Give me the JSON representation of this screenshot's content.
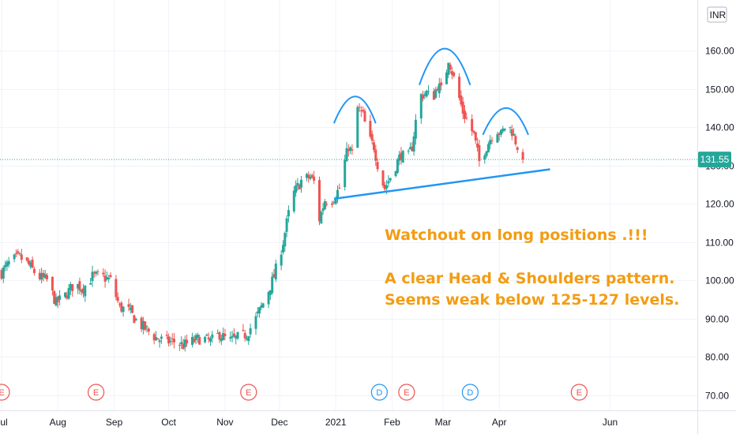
{
  "chart_data": {
    "type": "candlestick",
    "currency": "INR",
    "last_price": "131.55",
    "y_ticks": [
      "70.00",
      "80.00",
      "90.00",
      "100.00",
      "110.00",
      "120.00",
      "130.00",
      "140.00",
      "150.00",
      "160.00"
    ],
    "y_tick_values": [
      70,
      80,
      90,
      100,
      110,
      120,
      130,
      140,
      150,
      160
    ],
    "ylim": [
      68.5,
      169.5
    ],
    "x_labels": [
      {
        "label": "Jul",
        "day": 0
      },
      {
        "label": "Aug",
        "day": 31
      },
      {
        "label": "Sep",
        "day": 62
      },
      {
        "label": "Oct",
        "day": 92
      },
      {
        "label": "Nov",
        "day": 123
      },
      {
        "label": "Dec",
        "day": 153
      },
      {
        "label": "2021",
        "day": 184
      },
      {
        "label": "Feb",
        "day": 215
      },
      {
        "label": "Mar",
        "day": 243
      },
      {
        "label": "Apr",
        "day": 274
      },
      {
        "label": "Jun",
        "day": 335
      }
    ],
    "close_trend": [
      [
        0,
        102
      ],
      [
        5,
        105
      ],
      [
        10,
        106
      ],
      [
        15,
        104
      ],
      [
        20,
        101
      ],
      [
        25,
        100
      ],
      [
        30,
        94
      ],
      [
        35,
        96
      ],
      [
        40,
        99
      ],
      [
        45,
        98
      ],
      [
        50,
        101
      ],
      [
        55,
        101
      ],
      [
        60,
        100
      ],
      [
        65,
        93
      ],
      [
        70,
        92
      ],
      [
        75,
        89
      ],
      [
        80,
        87
      ],
      [
        85,
        85
      ],
      [
        90,
        84
      ],
      [
        95,
        84
      ],
      [
        100,
        83
      ],
      [
        105,
        84
      ],
      [
        110,
        85
      ],
      [
        115,
        84
      ],
      [
        120,
        86
      ],
      [
        125,
        84
      ],
      [
        130,
        85
      ],
      [
        135,
        86
      ],
      [
        140,
        90
      ],
      [
        145,
        95
      ],
      [
        150,
        101
      ],
      [
        155,
        110
      ],
      [
        157,
        115
      ],
      [
        160,
        122
      ],
      [
        165,
        126
      ],
      [
        170,
        127
      ],
      [
        173,
        125
      ],
      [
        175,
        116
      ],
      [
        178,
        121
      ],
      [
        182,
        121
      ],
      [
        186,
        124
      ],
      [
        188,
        129
      ],
      [
        191,
        135
      ],
      [
        193,
        133
      ],
      [
        196,
        145
      ],
      [
        199,
        143
      ],
      [
        202,
        137
      ],
      [
        205,
        135
      ],
      [
        208,
        128
      ],
      [
        211,
        124
      ],
      [
        214,
        127
      ],
      [
        217,
        130
      ],
      [
        220,
        133
      ],
      [
        223,
        131
      ],
      [
        226,
        135
      ],
      [
        230,
        148
      ],
      [
        234,
        149
      ],
      [
        237,
        147
      ],
      [
        240,
        151
      ],
      [
        243,
        149
      ],
      [
        246,
        158
      ],
      [
        250,
        151
      ],
      [
        254,
        144
      ],
      [
        257,
        141
      ],
      [
        260,
        138
      ],
      [
        263,
        131
      ],
      [
        266,
        134
      ],
      [
        269,
        137
      ],
      [
        272,
        140
      ],
      [
        275,
        138
      ],
      [
        278,
        141
      ],
      [
        281,
        139
      ],
      [
        284,
        135
      ],
      [
        287,
        131.55
      ]
    ],
    "events": [
      {
        "label": "E",
        "day": 0
      },
      {
        "label": "E",
        "day": 52
      },
      {
        "label": "E",
        "day": 136
      },
      {
        "label": "D",
        "day": 208
      },
      {
        "label": "E",
        "day": 223
      },
      {
        "label": "D",
        "day": 258
      },
      {
        "label": "E",
        "day": 318
      }
    ],
    "colors": {
      "up": "#26a69a",
      "down": "#ef5350",
      "drawing": "#2196f3",
      "annotation": "#f39c12",
      "last_price_line": "#26a69a"
    },
    "annotations": [
      "Watchout on long positions .!!!",
      "A clear Head & Shoulders pattern.",
      "Seems weak below 125-127 levels."
    ],
    "pattern": {
      "neckline": {
        "start": {
          "day": 183,
          "price": 121.3
        },
        "end": {
          "day": 302,
          "price": 129.0
        }
      },
      "left_shoulder": {
        "start_day": 183,
        "peak_day": 195,
        "end_day": 206,
        "base_price": 141.0,
        "peak_price": 148.0
      },
      "head": {
        "start_day": 230,
        "peak_day": 244,
        "end_day": 258,
        "base_price": 151.0,
        "peak_price": 160.5
      },
      "right_shoulder": {
        "start_day": 265,
        "peak_day": 278,
        "end_day": 290,
        "base_price": 138.0,
        "peak_price": 145.0
      }
    }
  }
}
